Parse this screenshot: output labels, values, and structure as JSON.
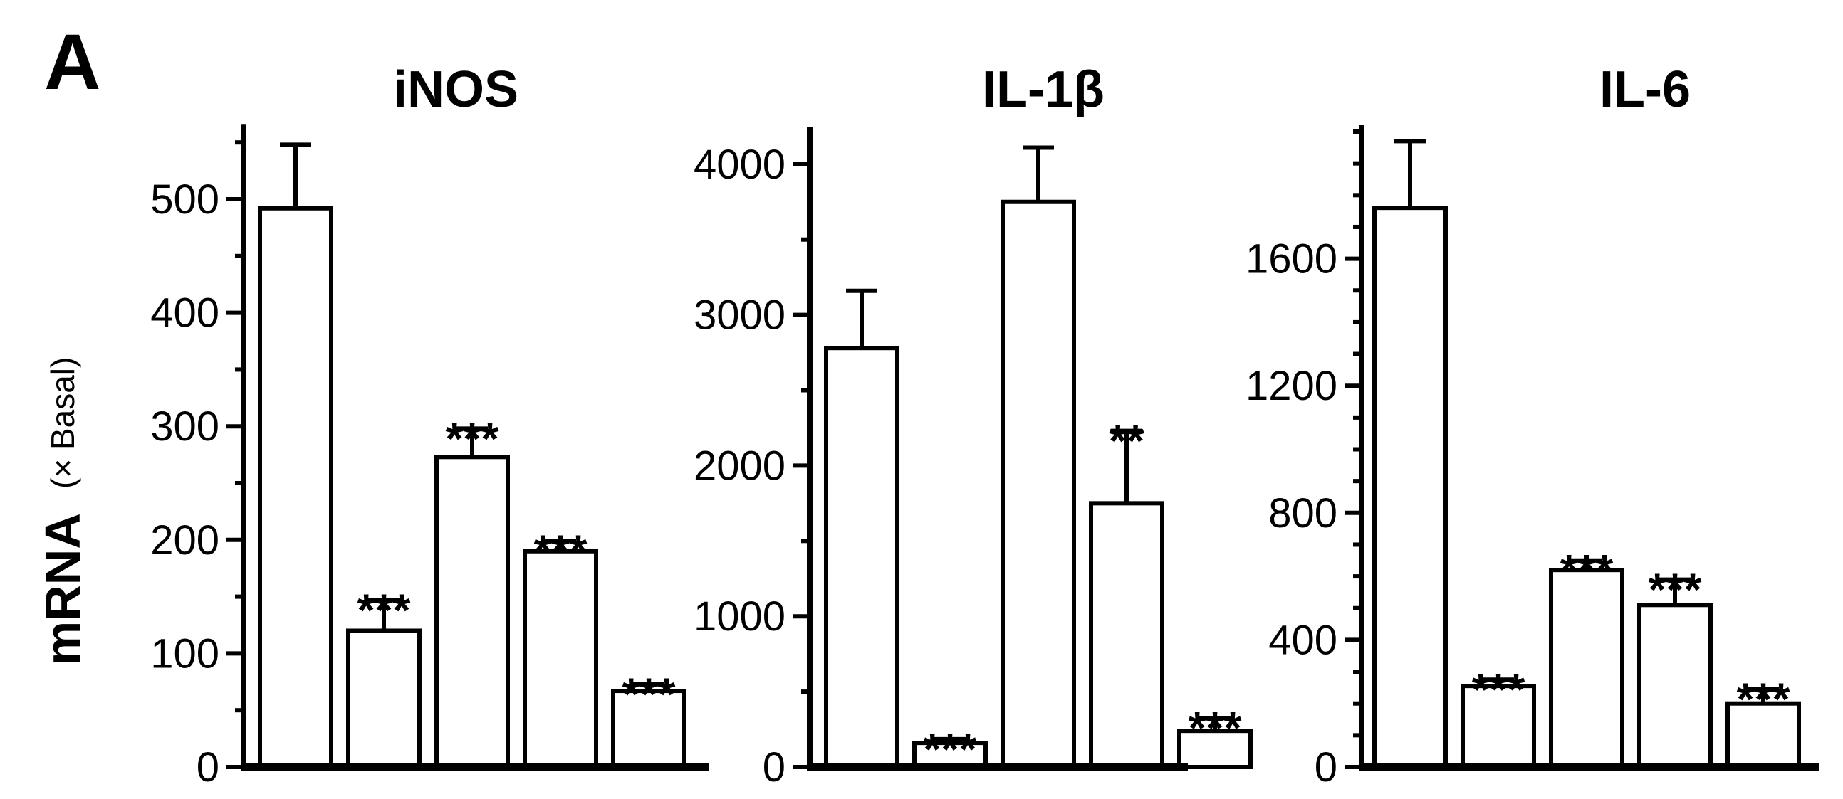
{
  "panel_label": "A",
  "ylabel": {
    "main": "mRNA",
    "unit": "(× Basal)"
  },
  "chart_data": [
    {
      "type": "bar",
      "title": "iNOS",
      "ylim": [
        0,
        560
      ],
      "major_ticks": [
        0,
        100,
        200,
        300,
        400,
        500
      ],
      "values": [
        492,
        120,
        273,
        190,
        67
      ],
      "errors": [
        56,
        27,
        25,
        9,
        6
      ],
      "significance": [
        "",
        "***",
        "***",
        "***",
        "***"
      ]
    },
    {
      "type": "bar",
      "title": "IL-1β",
      "ylim": [
        0,
        4200
      ],
      "major_ticks": [
        0,
        1000,
        2000,
        3000,
        4000
      ],
      "values": [
        2780,
        160,
        3750,
        1750,
        240
      ],
      "errors": [
        380,
        25,
        360,
        480,
        85
      ],
      "significance": [
        "",
        "***",
        "",
        "**",
        "***"
      ]
    },
    {
      "type": "bar",
      "title": "IL-6",
      "ylim": [
        0,
        2000
      ],
      "major_ticks": [
        0,
        400,
        800,
        1200,
        1600
      ],
      "values": [
        1760,
        255,
        620,
        510,
        200
      ],
      "errors": [
        210,
        20,
        30,
        80,
        45
      ],
      "significance": [
        "",
        "***",
        "***",
        "***",
        "***"
      ]
    }
  ]
}
